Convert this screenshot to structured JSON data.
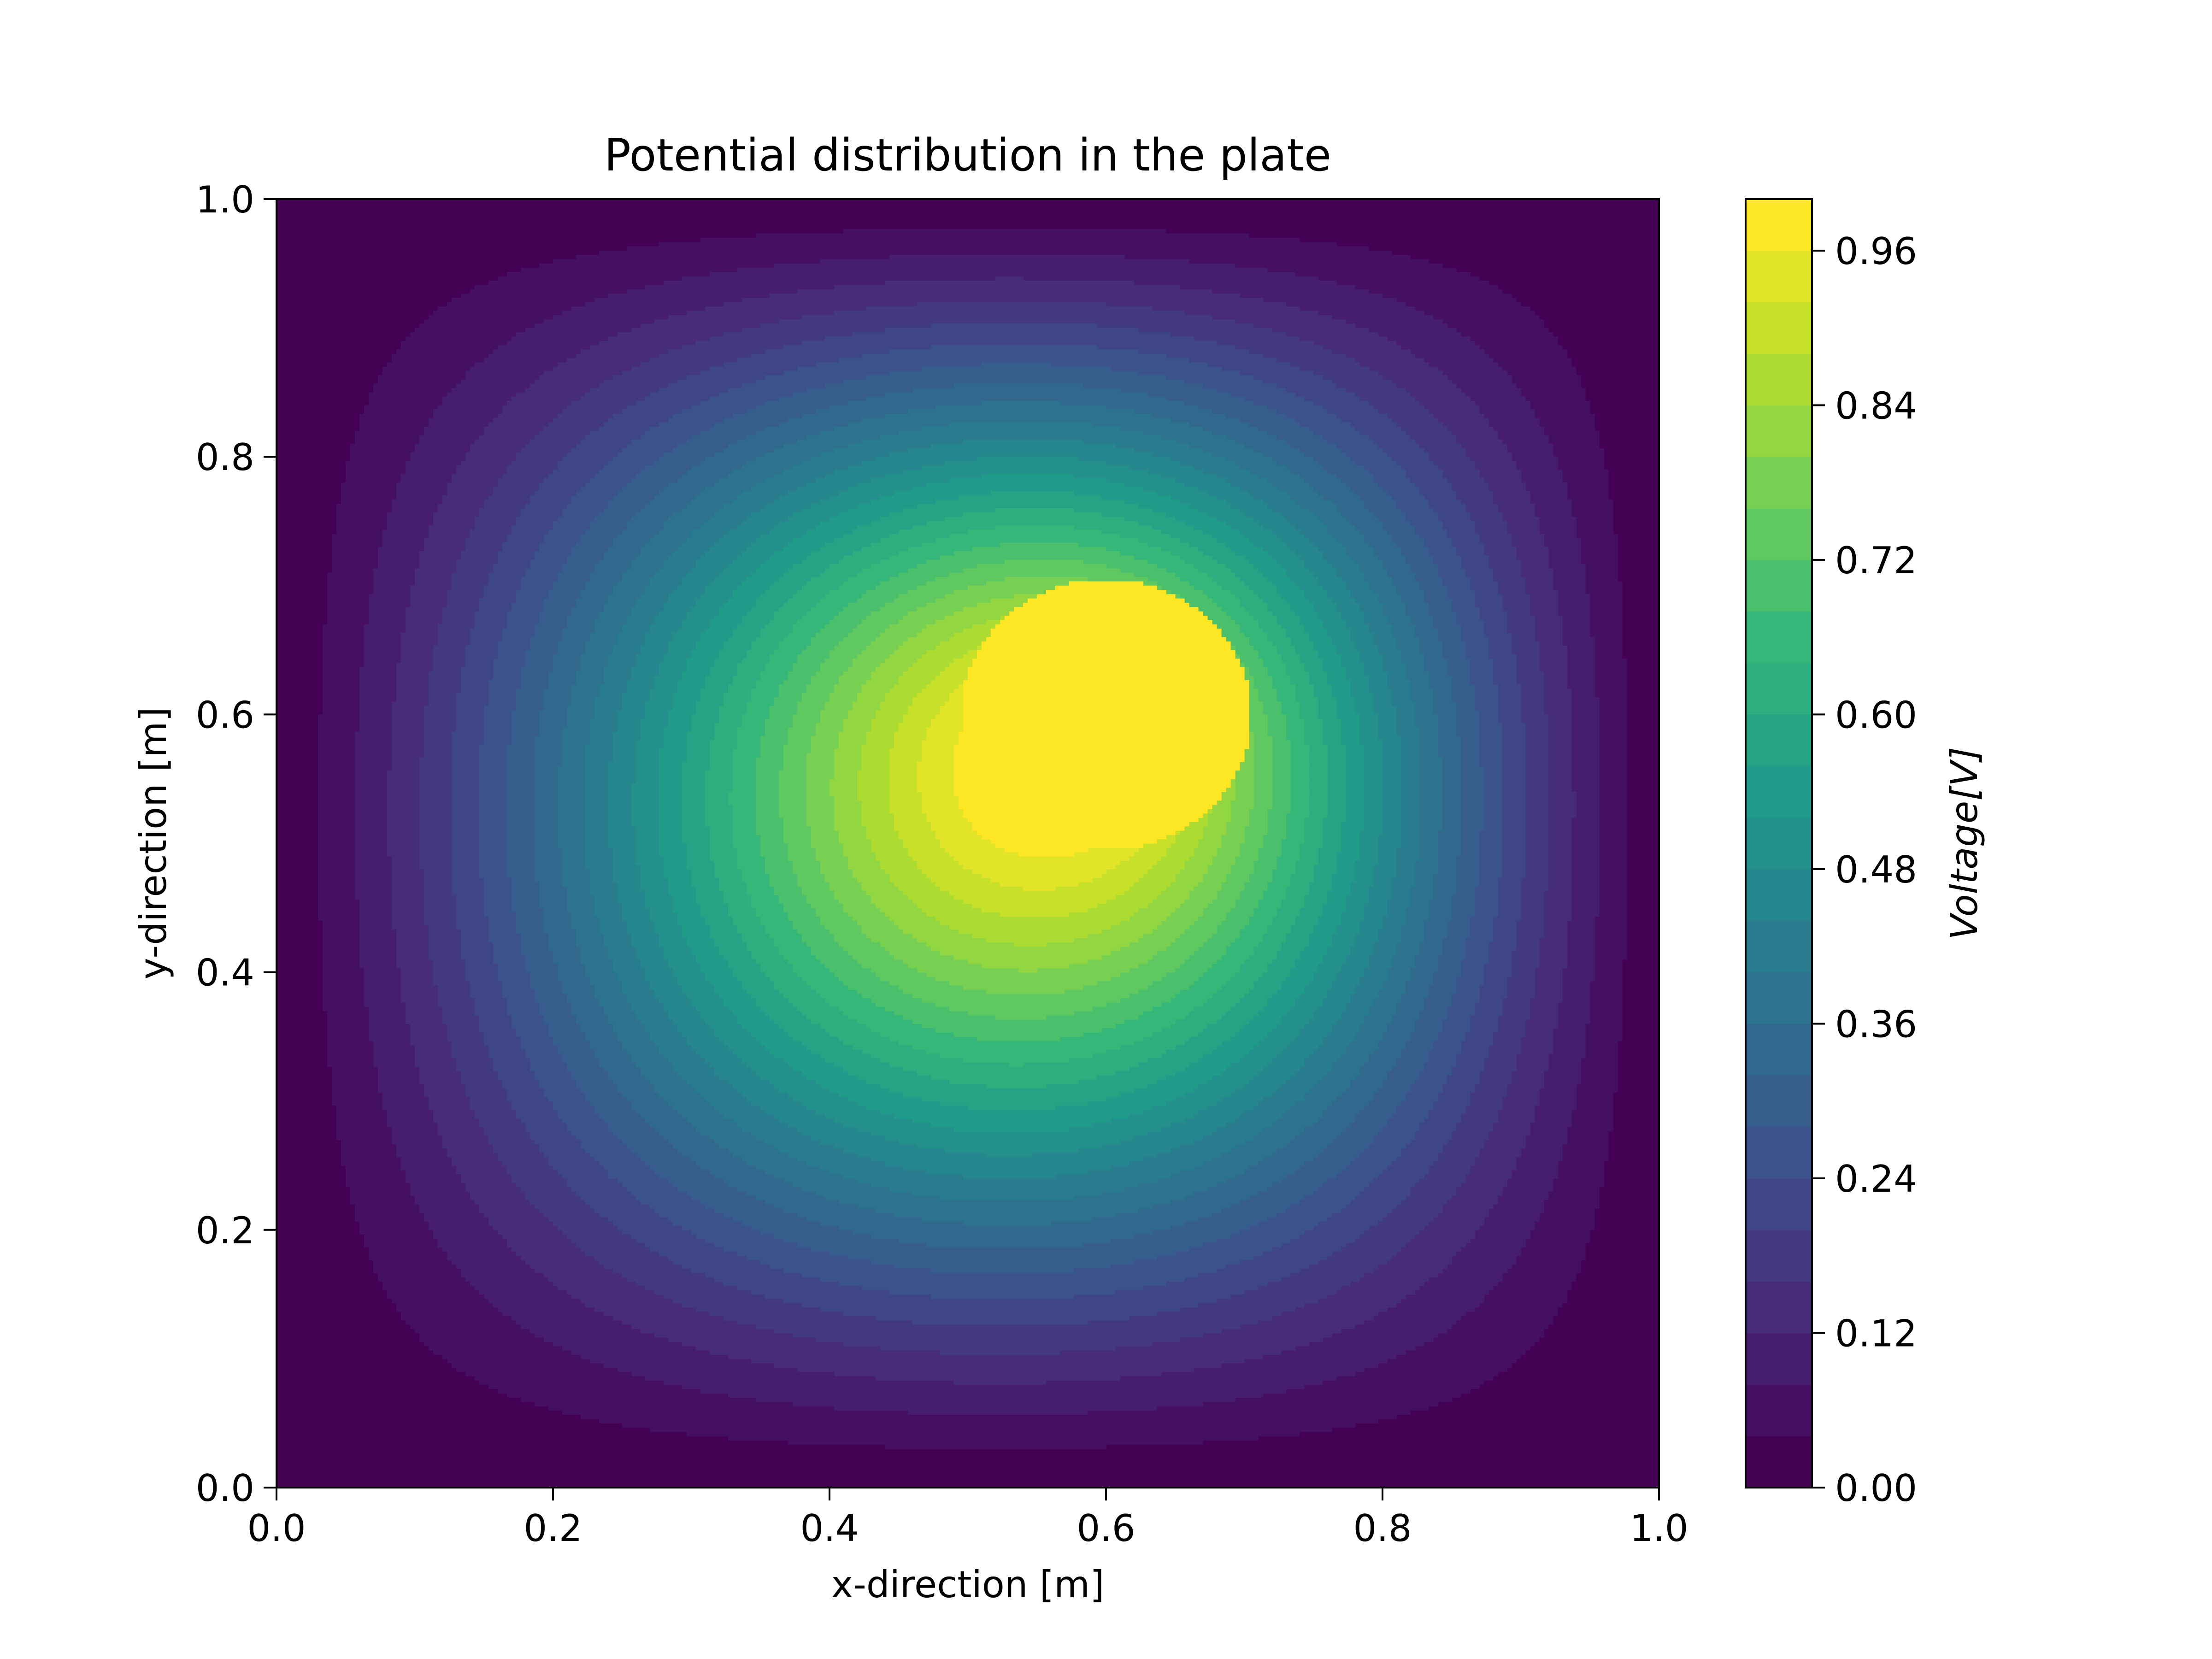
{
  "chart_data": {
    "type": "heatmap",
    "subtype": "filled-contour",
    "title": "Potential distribution in the plate",
    "xlabel": "x-direction [m]",
    "ylabel": "y-direction [m]",
    "xlim": [
      0.0,
      1.0
    ],
    "ylim": [
      0.0,
      1.0
    ],
    "x_ticks": [
      "0.0",
      "0.2",
      "0.4",
      "0.6",
      "0.8",
      "1.0"
    ],
    "y_ticks": [
      "0.0",
      "0.2",
      "0.4",
      "0.6",
      "0.8",
      "1.0"
    ],
    "grid": false,
    "colormap": "viridis",
    "source_point": {
      "x": 0.6,
      "y": 0.6,
      "value": 1.0
    },
    "boundary_value": 0.0,
    "levels": [
      0.0,
      0.04,
      0.08,
      0.12,
      0.16,
      0.2,
      0.24,
      0.28,
      0.32,
      0.36,
      0.4,
      0.44,
      0.48,
      0.52,
      0.56,
      0.6,
      0.64,
      0.68,
      0.72,
      0.76,
      0.8,
      0.84,
      0.88,
      0.92,
      0.96,
      1.0
    ],
    "colorbar": {
      "label": "Voltage[V]",
      "range": [
        0.0,
        1.0
      ],
      "ticks": [
        "0.00",
        "0.12",
        "0.24",
        "0.36",
        "0.48",
        "0.60",
        "0.72",
        "0.84",
        "0.96"
      ]
    }
  }
}
